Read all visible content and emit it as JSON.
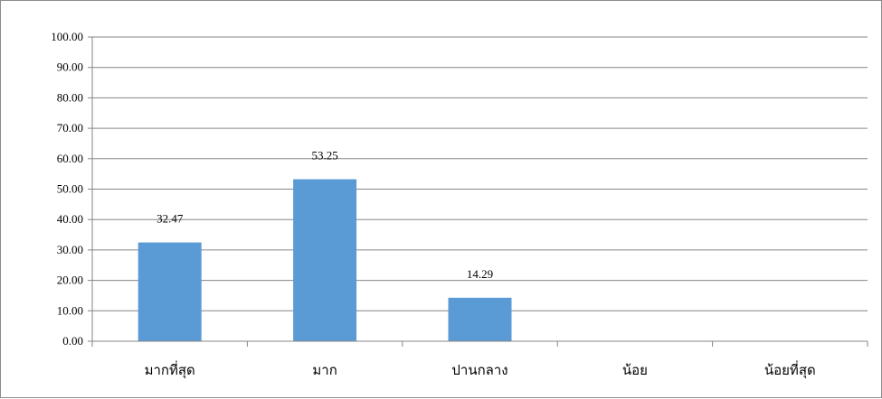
{
  "chart_data": {
    "type": "bar",
    "title": "",
    "xlabel": "",
    "ylabel": "",
    "categories": [
      "มากที่สุด",
      "มาก",
      "ปานกลาง",
      "น้อย",
      "น้อยที่สุด"
    ],
    "values": [
      32.47,
      53.25,
      14.29,
      0,
      0
    ],
    "data_labels": [
      "32.47",
      "53.25",
      "14.29",
      "",
      ""
    ],
    "ylim": [
      0,
      100
    ],
    "yticks": [
      "0.00",
      "10.00",
      "20.00",
      "30.00",
      "40.00",
      "50.00",
      "60.00",
      "70.00",
      "80.00",
      "90.00",
      "100.00"
    ],
    "grid": true,
    "legend": "none",
    "colors": {
      "bar": "#5b9bd5",
      "grid": "#868686",
      "axis": "#868686"
    }
  }
}
